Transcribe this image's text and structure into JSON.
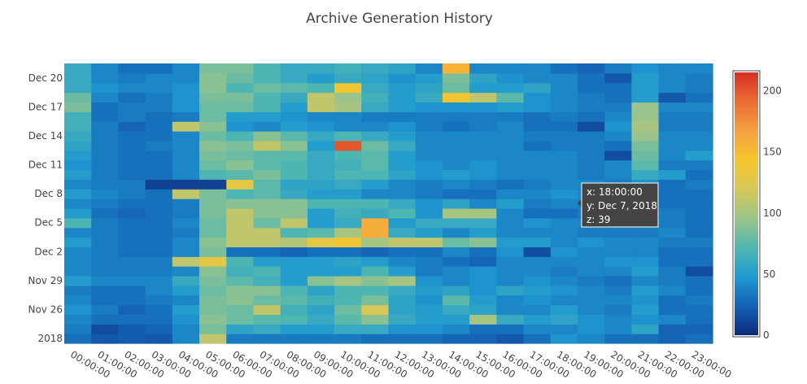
{
  "chart_data": {
    "type": "heatmap",
    "title": "Archive Generation History",
    "x_categories": [
      "00:00:00",
      "01:00:00",
      "02:00:00",
      "03:00:00",
      "04:00:00",
      "05:00:00",
      "06:00:00",
      "07:00:00",
      "08:00:00",
      "09:00:00",
      "10:00:00",
      "11:00:00",
      "12:00:00",
      "13:00:00",
      "14:00:00",
      "15:00:00",
      "16:00:00",
      "17:00:00",
      "18:00:00",
      "19:00:00",
      "20:00:00",
      "21:00:00",
      "22:00:00",
      "23:00:00"
    ],
    "y_dates": [
      "2018-11-23",
      "2018-11-24",
      "2018-11-25",
      "2018-11-26",
      "2018-11-27",
      "2018-11-28",
      "2018-11-29",
      "2018-11-30",
      "2018-12-01",
      "2018-12-02",
      "2018-12-03",
      "2018-12-04",
      "2018-12-05",
      "2018-12-06",
      "2018-12-07",
      "2018-12-08",
      "2018-12-09",
      "2018-12-10",
      "2018-12-11",
      "2018-12-12",
      "2018-12-13",
      "2018-12-14",
      "2018-12-15",
      "2018-12-16",
      "2018-12-17",
      "2018-12-18",
      "2018-12-19",
      "2018-12-20",
      "2018-12-21"
    ],
    "y_tick_labels": [
      "2018",
      "Nov 26",
      "Nov 29",
      "Dec 2",
      "Dec 5",
      "Dec 8",
      "Dec 11",
      "Dec 14",
      "Dec 17",
      "Dec 20"
    ],
    "y_tick_dates": [
      "2018-11-23",
      "2018-11-26",
      "2018-11-29",
      "2018-12-02",
      "2018-12-05",
      "2018-12-08",
      "2018-12-11",
      "2018-12-14",
      "2018-12-17",
      "2018-12-20"
    ],
    "z": [
      [
        30,
        20,
        22,
        20,
        40,
        110,
        35,
        35,
        35,
        35,
        35,
        30,
        30,
        30,
        25,
        25,
        20,
        30,
        45,
        40,
        30,
        30,
        25,
        30
      ],
      [
        35,
        15,
        22,
        25,
        40,
        85,
        55,
        60,
        50,
        50,
        60,
        60,
        45,
        45,
        40,
        30,
        30,
        40,
        40,
        45,
        40,
        55,
        25,
        25
      ],
      [
        40,
        30,
        30,
        30,
        45,
        90,
        80,
        75,
        70,
        60,
        75,
        90,
        60,
        50,
        50,
        100,
        60,
        50,
        55,
        45,
        40,
        45,
        40,
        30
      ],
      [
        45,
        35,
        25,
        30,
        50,
        85,
        80,
        110,
        65,
        55,
        80,
        120,
        55,
        50,
        60,
        55,
        40,
        40,
        50,
        40,
        35,
        50,
        30,
        30
      ],
      [
        40,
        30,
        30,
        35,
        40,
        85,
        90,
        80,
        75,
        65,
        70,
        85,
        55,
        45,
        75,
        50,
        40,
        45,
        40,
        40,
        40,
        45,
        30,
        35
      ],
      [
        35,
        30,
        30,
        40,
        50,
        80,
        90,
        90,
        70,
        55,
        70,
        70,
        60,
        50,
        55,
        45,
        55,
        50,
        45,
        40,
        35,
        50,
        40,
        30
      ],
      [
        50,
        40,
        40,
        40,
        60,
        85,
        75,
        65,
        50,
        90,
        100,
        90,
        100,
        45,
        40,
        45,
        40,
        45,
        40,
        35,
        30,
        40,
        35,
        30
      ],
      [
        40,
        35,
        35,
        35,
        40,
        90,
        65,
        70,
        50,
        50,
        50,
        70,
        50,
        35,
        40,
        45,
        40,
        40,
        35,
        40,
        40,
        50,
        35,
        15
      ],
      [
        40,
        35,
        35,
        35,
        110,
        130,
        70,
        50,
        50,
        50,
        55,
        50,
        40,
        35,
        30,
        25,
        40,
        40,
        40,
        40,
        45,
        45,
        30,
        30
      ],
      [
        40,
        35,
        30,
        30,
        40,
        85,
        30,
        30,
        25,
        30,
        30,
        25,
        30,
        30,
        40,
        30,
        45,
        15,
        45,
        40,
        40,
        40,
        30,
        30
      ],
      [
        50,
        35,
        30,
        30,
        40,
        90,
        110,
        110,
        105,
        130,
        140,
        100,
        110,
        110,
        80,
        90,
        50,
        50,
        40,
        45,
        40,
        40,
        35,
        35
      ],
      [
        40,
        35,
        30,
        30,
        35,
        80,
        110,
        110,
        70,
        75,
        100,
        160,
        60,
        50,
        40,
        50,
        40,
        40,
        40,
        35,
        35,
        35,
        40,
        30
      ],
      [
        70,
        35,
        30,
        30,
        40,
        80,
        110,
        80,
        110,
        50,
        60,
        160,
        50,
        60,
        60,
        60,
        40,
        45,
        40,
        40,
        35,
        40,
        35,
        30
      ],
      [
        50,
        30,
        25,
        30,
        35,
        85,
        110,
        90,
        90,
        50,
        65,
        60,
        70,
        45,
        100,
        100,
        40,
        30,
        30,
        35,
        40,
        40,
        35,
        30
      ],
      [
        40,
        35,
        30,
        30,
        35,
        85,
        90,
        90,
        90,
        70,
        70,
        70,
        60,
        45,
        55,
        40,
        50,
        35,
        39,
        35,
        30,
        40,
        30,
        30
      ],
      [
        50,
        40,
        35,
        30,
        110,
        85,
        70,
        75,
        60,
        50,
        50,
        40,
        40,
        35,
        30,
        30,
        40,
        40,
        45,
        40,
        40,
        50,
        30,
        30
      ],
      [
        40,
        35,
        35,
        10,
        10,
        10,
        130,
        75,
        55,
        55,
        60,
        50,
        40,
        35,
        40,
        35,
        30,
        35,
        40,
        40,
        35,
        45,
        30,
        35
      ],
      [
        50,
        35,
        30,
        30,
        40,
        70,
        75,
        85,
        70,
        60,
        70,
        70,
        55,
        45,
        50,
        45,
        40,
        40,
        40,
        35,
        40,
        60,
        50,
        30
      ],
      [
        45,
        35,
        30,
        30,
        40,
        80,
        90,
        75,
        70,
        60,
        65,
        75,
        50,
        45,
        40,
        45,
        40,
        40,
        40,
        35,
        40,
        75,
        35,
        35
      ],
      [
        50,
        35,
        30,
        30,
        40,
        85,
        80,
        75,
        75,
        60,
        70,
        75,
        50,
        40,
        40,
        40,
        40,
        40,
        40,
        35,
        15,
        80,
        40,
        50
      ],
      [
        55,
        35,
        30,
        35,
        40,
        90,
        85,
        110,
        90,
        50,
        200,
        80,
        60,
        40,
        40,
        40,
        40,
        30,
        35,
        35,
        30,
        85,
        40,
        40
      ],
      [
        60,
        35,
        30,
        30,
        40,
        80,
        70,
        90,
        75,
        60,
        70,
        60,
        50,
        40,
        40,
        40,
        40,
        35,
        35,
        35,
        40,
        95,
        40,
        40
      ],
      [
        65,
        35,
        25,
        30,
        110,
        90,
        45,
        40,
        50,
        45,
        40,
        40,
        45,
        35,
        30,
        35,
        40,
        30,
        30,
        15,
        45,
        100,
        35,
        35
      ],
      [
        65,
        30,
        35,
        30,
        35,
        80,
        50,
        50,
        45,
        40,
        40,
        35,
        35,
        35,
        35,
        35,
        35,
        30,
        35,
        30,
        40,
        95,
        35,
        35
      ],
      [
        85,
        30,
        35,
        35,
        45,
        80,
        80,
        70,
        50,
        110,
        100,
        60,
        50,
        45,
        45,
        45,
        50,
        45,
        40,
        35,
        35,
        95,
        40,
        40
      ],
      [
        80,
        40,
        30,
        35,
        45,
        85,
        85,
        70,
        60,
        110,
        95,
        65,
        50,
        60,
        140,
        110,
        75,
        45,
        40,
        35,
        30,
        50,
        20,
        30
      ],
      [
        60,
        45,
        40,
        40,
        45,
        90,
        70,
        80,
        75,
        70,
        140,
        60,
        50,
        55,
        80,
        50,
        50,
        55,
        40,
        30,
        30,
        50,
        40,
        35
      ],
      [
        60,
        40,
        35,
        40,
        40,
        90,
        80,
        70,
        60,
        50,
        60,
        55,
        45,
        50,
        85,
        55,
        45,
        40,
        40,
        30,
        20,
        50,
        40,
        35
      ],
      [
        60,
        40,
        30,
        30,
        40,
        85,
        85,
        70,
        60,
        60,
        65,
        60,
        55,
        40,
        155,
        40,
        40,
        40,
        30,
        25,
        35,
        45,
        40,
        40
      ]
    ],
    "zmin": 0,
    "zmax": 215,
    "colorscale": [
      "#0d2a7a",
      "#1461b4",
      "#1f9ad0",
      "#50b7b0",
      "#9cc48a",
      "#d6c858",
      "#f6c52c",
      "#f5a142",
      "#ea6c33",
      "#d83026"
    ],
    "colorbar_ticks": [
      0,
      50,
      100,
      150,
      200
    ],
    "hover": {
      "x_label": "x: 18:00:00",
      "y_label": "y: Dec 7, 2018",
      "z_label": "z: 39",
      "row": 14,
      "col": 18
    }
  }
}
